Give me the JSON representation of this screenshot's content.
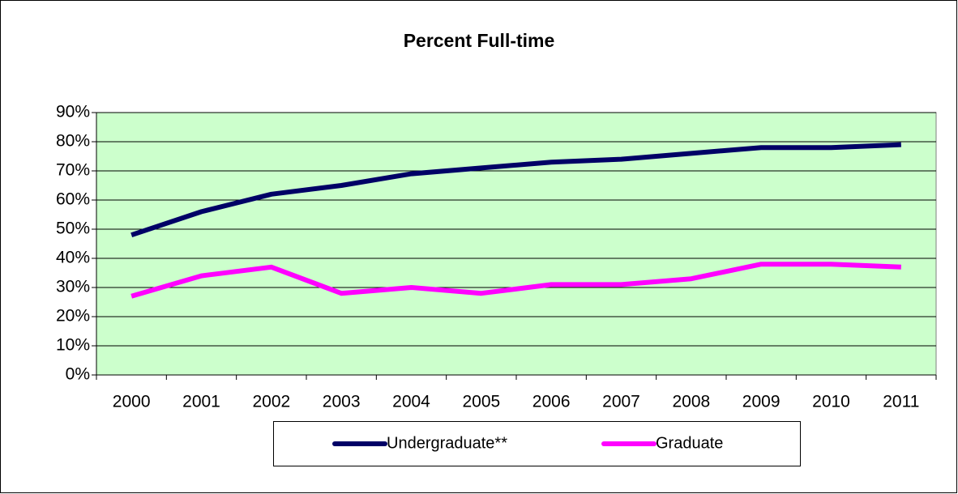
{
  "chart_data": {
    "type": "line",
    "title": "Percent Full-time",
    "categories": [
      "2000",
      "2001",
      "2002",
      "2003",
      "2004",
      "2005",
      "2006",
      "2007",
      "2008",
      "2009",
      "2010",
      "2011"
    ],
    "series": [
      {
        "name": "Undergraduate**",
        "color": "#000066",
        "values": [
          48,
          56,
          62,
          65,
          69,
          71,
          73,
          74,
          76,
          78,
          78,
          79
        ]
      },
      {
        "name": "Graduate",
        "color": "#ff00ff",
        "values": [
          27,
          34,
          37,
          28,
          30,
          28,
          31,
          31,
          33,
          38,
          38,
          37
        ]
      }
    ],
    "ylim": [
      0,
      90
    ],
    "yticks": [
      {
        "value": 0,
        "label": "0%"
      },
      {
        "value": 10,
        "label": "10%"
      },
      {
        "value": 20,
        "label": "20%"
      },
      {
        "value": 30,
        "label": "30%"
      },
      {
        "value": 40,
        "label": "40%"
      },
      {
        "value": 50,
        "label": "50%"
      },
      {
        "value": 60,
        "label": "60%"
      },
      {
        "value": 70,
        "label": "70%"
      },
      {
        "value": 80,
        "label": "80%"
      },
      {
        "value": 90,
        "label": "90%"
      }
    ],
    "grid": true,
    "plot_background": "#ccffcc",
    "legend": "bottom"
  }
}
